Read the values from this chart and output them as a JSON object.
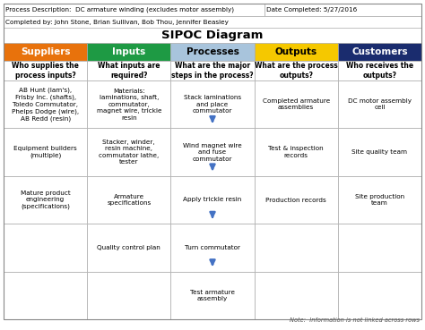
{
  "title": "SIPOC Diagram",
  "meta1": "Process Description:  DC armature winding (excludes motor assembly)",
  "meta2": "Date Completed: 5/27/2016",
  "meta3": "Completed by: John Stone, Brian Sullivan, Bob Thou, Jennifer Beasley",
  "headers": [
    "Suppliers",
    "Inputs",
    "Processes",
    "Outputs",
    "Customers"
  ],
  "header_colors": [
    "#E8720C",
    "#1E9A44",
    "#A8C4DC",
    "#F5C800",
    "#1A2C6E"
  ],
  "header_text_colors": [
    "#ffffff",
    "#ffffff",
    "#000000",
    "#000000",
    "#ffffff"
  ],
  "subheaders": [
    "Who supplies the\nprocess inputs?",
    "What inputs are\nrequired?",
    "What are the major\nsteps in the process?",
    "What are the process\noutputs?",
    "Who receives the\noutputs?"
  ],
  "rows": [
    [
      "AB Hunt (lam's),\nFrisby Inc. (shafts),\nToledo Commutator,\nPhelps Dodge (wire),\nAB Redd (resin)",
      "Materials:\nlaminations, shaft,\ncommutator,\nmagnet wire, trickle\nresin",
      "Stack laminations\nand place\ncommutator",
      "Completed armature\nassemblies",
      "DC motor assembly\ncell"
    ],
    [
      "Equipment builders\n(multiple)",
      "Stacker, winder,\nresin machine,\ncommutator lathe,\ntester",
      "Wind magnet wire\nand fuse\ncommutator",
      "Test & inspection\nrecords",
      "Site quality team"
    ],
    [
      "Mature product\nengineering\n(specifications)",
      "Armature\nspecifications",
      "Apply trickle resin",
      "Production records",
      "Site production\nteam"
    ],
    [
      "",
      "Quality control plan",
      "Turn commutator",
      "",
      ""
    ],
    [
      "",
      "",
      "Test armature\nassembly",
      "",
      ""
    ]
  ],
  "note": "Note:  Information is not linked across rows",
  "arrow_color": "#4472C4",
  "grid_color": "#aaaaaa",
  "bg_color": "#ffffff"
}
